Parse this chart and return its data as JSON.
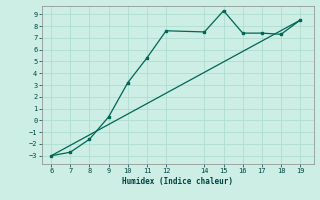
{
  "title": "",
  "xlabel": "Humidex (Indice chaleur)",
  "bg_color": "#cceee4",
  "grid_color": "#b0ddd0",
  "line_color": "#006655",
  "xlim": [
    5.5,
    19.7
  ],
  "ylim": [
    -3.7,
    9.7
  ],
  "xticks": [
    6,
    7,
    8,
    9,
    10,
    11,
    12,
    14,
    15,
    16,
    17,
    18,
    19
  ],
  "yticks": [
    -3,
    -2,
    -1,
    0,
    1,
    2,
    3,
    4,
    5,
    6,
    7,
    8,
    9
  ],
  "line1_x": [
    6,
    7,
    8,
    9,
    10,
    11,
    12,
    14,
    15,
    16,
    17,
    18,
    19
  ],
  "line1_y": [
    -3.0,
    -2.7,
    -1.6,
    0.3,
    3.2,
    5.3,
    7.6,
    7.5,
    9.3,
    7.4,
    7.4,
    7.3,
    8.5
  ],
  "line2_x": [
    6,
    19
  ],
  "line2_y": [
    -3.0,
    8.5
  ]
}
